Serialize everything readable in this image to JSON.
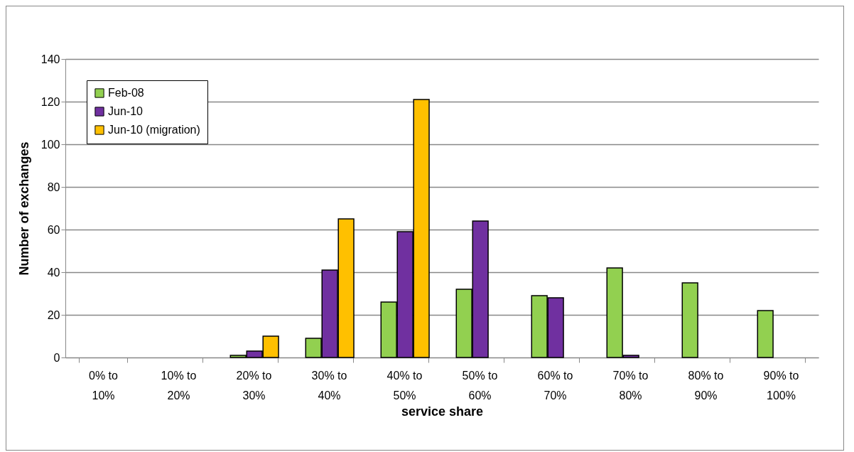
{
  "chart_data": {
    "type": "bar",
    "xlabel": "service share",
    "ylabel": "Number of exchanges",
    "categories": [
      "0% to 10%",
      "10% to 20%",
      "20% to 30%",
      "30% to 40%",
      "40% to 50%",
      "50% to 60%",
      "60% to 70%",
      "70% to 80%",
      "80% to 90%",
      "90% to 100%"
    ],
    "series": [
      {
        "name": "Feb-08",
        "color": "#92d050",
        "values": [
          null,
          null,
          1,
          9,
          26,
          32,
          29,
          42,
          35,
          22
        ]
      },
      {
        "name": "Jun-10",
        "color": "#7030a0",
        "values": [
          null,
          null,
          3,
          41,
          59,
          64,
          28,
          1,
          null,
          null
        ]
      },
      {
        "name": "Jun-10 (migration)",
        "color": "#ffc000",
        "values": [
          null,
          null,
          10,
          65,
          121,
          null,
          null,
          null,
          null,
          null
        ]
      }
    ],
    "ylim": [
      0,
      140
    ],
    "yticks": [
      0,
      20,
      40,
      60,
      80,
      100,
      120,
      140
    ],
    "grid": "y",
    "legend": "top left"
  }
}
